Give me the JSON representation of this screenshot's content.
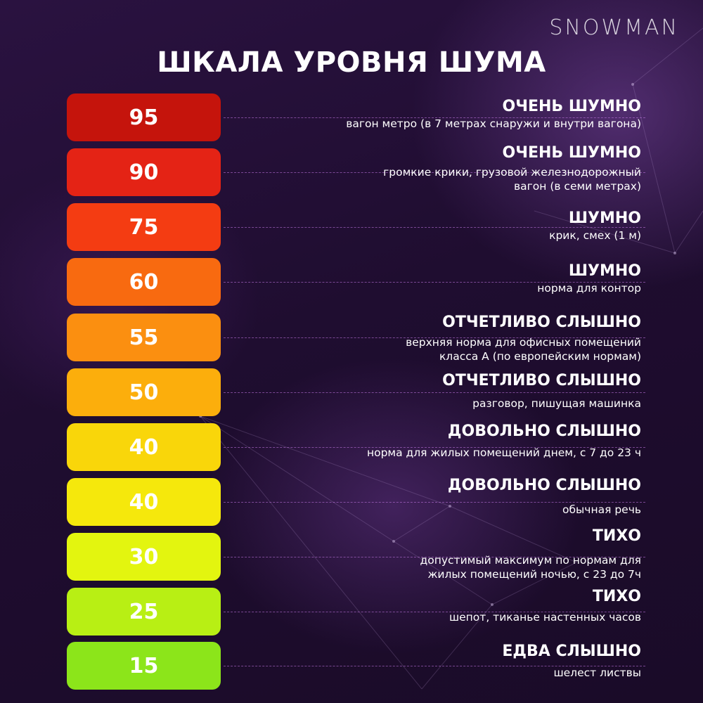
{
  "brand": "SNOWMAN",
  "title": "ШКАЛА УРОВНЯ ШУМА",
  "rows": [
    {
      "level": "95",
      "color": "#c5140c",
      "heading": "ОЧЕНЬ ШУМНО",
      "desc": [
        "вагон метро (в 7 метрах снаружи и внутри вагона)"
      ]
    },
    {
      "level": "90",
      "color": "#e42315",
      "heading": "ОЧЕНЬ ШУМНО",
      "desc": [
        "громкие крики, грузовой железнодорожный",
        "вагон (в семи метрах)"
      ]
    },
    {
      "level": "75",
      "color": "#f43c12",
      "heading": "ШУМНО",
      "desc": [
        "крик, смех (1 м)"
      ]
    },
    {
      "level": "60",
      "color": "#f86a10",
      "heading": "ШУМНО",
      "desc": [
        "норма для контор"
      ]
    },
    {
      "level": "55",
      "color": "#fb8f10",
      "heading": "ОТЧЕТЛИВО СЛЫШНО",
      "desc": [
        "верхняя норма для офисных помещений",
        "класса А (по европейским нормам)"
      ]
    },
    {
      "level": "50",
      "color": "#fcae0c",
      "heading": "ОТЧЕТЛИВО СЛЫШНО",
      "desc": [
        "разговор, пишущая машинка"
      ]
    },
    {
      "level": "40",
      "color": "#f9d60a",
      "heading": "ДОВОЛЬНО СЛЫШНО",
      "desc": [
        "норма для жилых помещений днем, с 7 до 23 ч"
      ]
    },
    {
      "level": "40",
      "color": "#f5e80c",
      "heading": "ДОВОЛЬНО СЛЫШНО",
      "desc": [
        "обычная речь"
      ]
    },
    {
      "level": "30",
      "color": "#e3f50f",
      "heading": "ТИХО",
      "desc": [
        "допустимый максимум по нормам для",
        "жилых помещений ночью, с 23 до 7ч"
      ]
    },
    {
      "level": "25",
      "color": "#b8ef14",
      "heading": "ТИХО",
      "desc": [
        "шепот, тиканье настенных часов"
      ]
    },
    {
      "level": "15",
      "color": "#8ce51a",
      "heading": "ЕДВА СЛЫШНО",
      "desc": [
        "шелест листвы"
      ]
    }
  ]
}
